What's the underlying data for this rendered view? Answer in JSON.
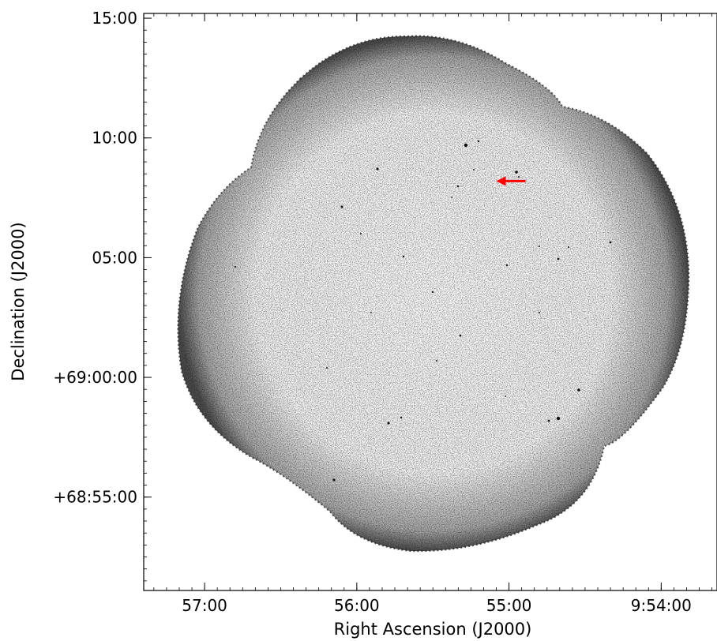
{
  "chart_data": {
    "type": "image",
    "xlabel": "Right Ascension (J2000)",
    "ylabel": "Declination (J2000)",
    "xticks": [
      {
        "label": "57:00",
        "ra_sec": 35820
      },
      {
        "label": "56:00",
        "ra_sec": 35760
      },
      {
        "label": "55:00",
        "ra_sec": 35700
      },
      {
        "label": "9:54:00",
        "ra_sec": 35640
      }
    ],
    "yticks": [
      {
        "label": "15:00",
        "dec_min": 15
      },
      {
        "label": "10:00",
        "dec_min": 10
      },
      {
        "label": "05:00",
        "dec_min": 5
      },
      {
        "label": "+69:00:00",
        "dec_min": 0
      },
      {
        "label": "+68:55:00",
        "dec_min": -5
      }
    ],
    "xlim_ra_sec": [
      35844,
      35618
    ],
    "ylim_dec_min": [
      -8.9,
      15.2
    ],
    "grid": false,
    "colormap": "grayscale (inverted)",
    "arrow_color": "#ff0000",
    "arrow_target": {
      "ra_sec": 35705,
      "dec_min": 8.2
    }
  }
}
